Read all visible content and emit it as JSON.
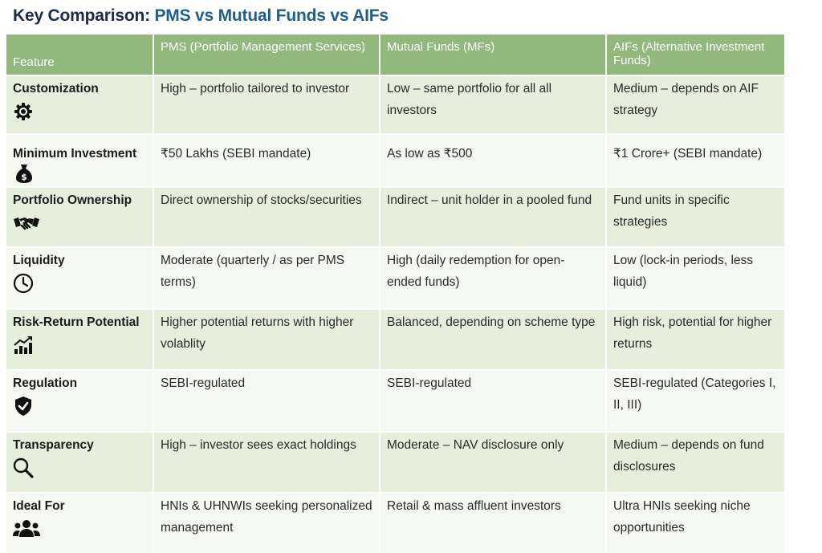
{
  "title": {
    "main": "Key Comparison: ",
    "highlight": "PMS vs Mutual Funds vs AIFs"
  },
  "colors": {
    "header_bg": "#93b87e",
    "row_odd": "#e6efdc",
    "row_even": "#f5f8f1",
    "title": "#1d2b4a",
    "title_highlight": "#1f5f8f"
  },
  "headers": [
    "Feature",
    "PMS (Portfolio Management Services)",
    "Mutual Funds (MFs)",
    "AIFs (Alternative Investment Funds)"
  ],
  "rows": [
    {
      "feature": "Customization",
      "icon": "gear-icon",
      "pms": "High – portfolio tailored to investor",
      "mf": "Low – same portfolio for all all investors",
      "aif": "Medium – depends on AIF strategy"
    },
    {
      "feature": "Minimum Investment",
      "icon": "money-bag-icon",
      "pms": "₹50 Lakhs (SEBI mandate)",
      "mf": "As low as ₹500",
      "aif": "₹1 Crore+ (SEBI mandate)"
    },
    {
      "feature": "Portfolio Ownership",
      "icon": "handshake-icon",
      "pms": "Direct ownership of stocks/securities",
      "mf": "Indirect – unit holder in a pooled fund",
      "aif": "Fund units in specific strategies"
    },
    {
      "feature": "Liquidity",
      "icon": "clock-icon",
      "pms": "Moderate (quarterly / as per PMS terms)",
      "mf": "High (daily redemption for open-ended funds)",
      "aif": "Low (lock-in periods, less liquid)"
    },
    {
      "feature": "Risk-Return Potential",
      "icon": "growth-chart-icon",
      "pms": "Higher potential returns with higher volablity",
      "mf": "Balanced, depending on scheme type",
      "aif": "High risk, potential for higher returns"
    },
    {
      "feature": "Regulation",
      "icon": "shield-check-icon",
      "pms": "SEBI-regulated",
      "mf": "SEBI-regulated",
      "aif": "SEBI-regulated (Categories I, II, III)"
    },
    {
      "feature": "Transparency",
      "icon": "magnifier-icon",
      "pms": "High – investor sees exact holdings",
      "mf": "Moderate – NAV disclosure only",
      "aif": "Medium – depends on fund disclosures"
    },
    {
      "feature": "Ideal For",
      "icon": "people-group-icon",
      "pms": "HNIs & UHNWIs seeking personalized management",
      "mf": "Retail & mass affluent investors",
      "aif": "Ultra HNIs seeking niche opportunities"
    }
  ]
}
